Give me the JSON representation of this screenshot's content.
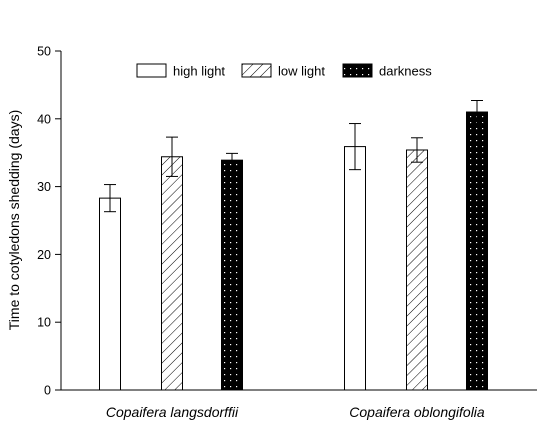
{
  "chart_data": {
    "type": "bar",
    "xlabel": "",
    "ylabel": "Time to cotyledons shedding (days)",
    "ylim": [
      0,
      50
    ],
    "yticks": [
      0,
      10,
      20,
      30,
      40,
      50
    ],
    "categories": [
      "Copaifera langsdorffii",
      "Copaifera oblongifolia"
    ],
    "series": [
      {
        "name": "high light",
        "pattern": "open",
        "fill": "#ffffff",
        "values": [
          28.3,
          35.9
        ],
        "errors": [
          2.0,
          3.4
        ]
      },
      {
        "name": "low light",
        "pattern": "hatched",
        "fill": "#ffffff",
        "values": [
          34.4,
          35.4
        ],
        "errors": [
          2.9,
          1.8
        ]
      },
      {
        "name": "darkness",
        "pattern": "dotted",
        "fill": "#000000",
        "values": [
          33.9,
          41.0
        ],
        "errors": [
          1.0,
          1.7
        ]
      }
    ],
    "legend_position": "top",
    "grid": false
  }
}
